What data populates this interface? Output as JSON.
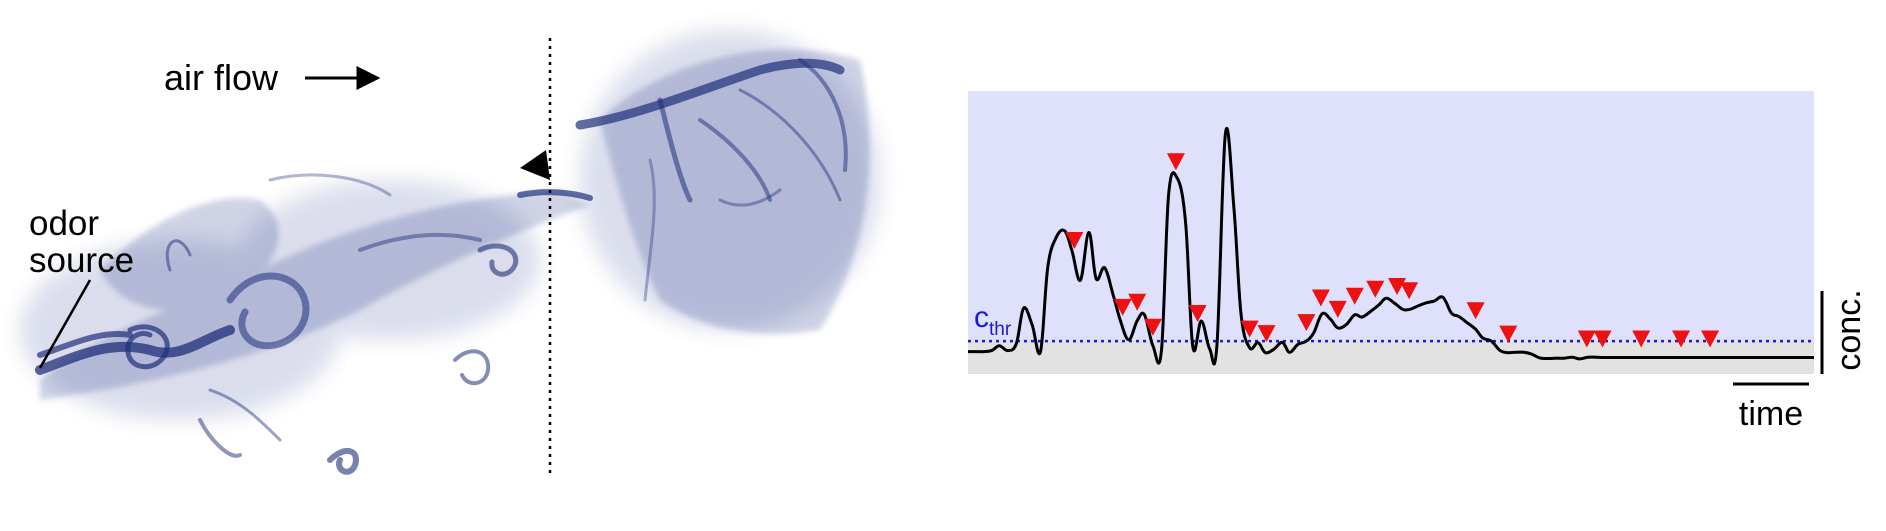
{
  "labels": {
    "air_flow": "air flow",
    "odor_source_line1": "odor",
    "odor_source_line2": "source",
    "threshold_main": "c",
    "threshold_sub": "thr",
    "y_scale": "conc.",
    "x_scale": "time"
  },
  "colors": {
    "plume": "#1f2f7a",
    "above_threshold": "#dfe0fb",
    "below_threshold": "#e2e2e2",
    "threshold_line": "#1a1ad6",
    "peak_marker": "#ee1111",
    "trace": "#000000"
  },
  "icons": {
    "air_flow_arrow": "right-arrow-icon",
    "detection_marker": "black-triangle-icon",
    "peak_marker": "red-down-triangle-icon"
  },
  "chart_data": {
    "type": "line",
    "x": [
      0,
      7,
      13,
      20,
      26,
      33,
      40,
      46,
      53,
      60,
      66,
      73,
      80,
      86,
      93,
      100,
      106,
      113,
      120,
      126,
      133,
      140,
      146,
      153,
      160,
      166,
      173,
      180,
      186,
      193,
      200,
      206,
      213,
      220,
      226,
      233,
      240,
      246,
      253,
      260,
      266,
      273,
      280,
      286,
      293,
      300,
      306,
      313,
      320,
      326,
      333,
      340,
      346,
      353,
      360,
      366,
      373,
      380,
      386,
      393,
      400,
      406,
      413,
      420,
      426,
      433,
      440,
      446,
      453,
      460,
      466,
      473,
      480,
      486,
      493,
      500,
      506,
      513,
      520,
      526,
      533,
      540,
      546,
      553,
      560,
      566,
      573,
      580,
      586,
      593,
      600,
      606,
      613,
      620,
      626,
      633,
      640,
      646,
      653,
      660,
      666,
      673,
      680,
      686,
      693,
      700
    ],
    "y": [
      0.8,
      0.8,
      0.8,
      1.2,
      2.6,
      1.1,
      3.2,
      14.0,
      9.0,
      0.8,
      26.5,
      35.5,
      37.5,
      31.5,
      22.5,
      37.0,
      23.0,
      26.3,
      18.2,
      10.3,
      4.4,
      10.2,
      12.0,
      2.6,
      1.0,
      48.5,
      53.6,
      40.3,
      2.3,
      10.1,
      1.6,
      3.0,
      67.0,
      44.5,
      12.0,
      2.0,
      3.5,
      0.5,
      1.5,
      3.6,
      0.6,
      3.0,
      4.0,
      6.5,
      12.3,
      10.6,
      8.0,
      9.0,
      12.0,
      11.3,
      13.0,
      15.0,
      17.0,
      15.5,
      13.6,
      13.7,
      14.8,
      15.7,
      16.2,
      17.3,
      12.5,
      11.5,
      9.6,
      7.6,
      4.9,
      4.0,
      1.2,
      0.5,
      0.6,
      0.6,
      0.1,
      -1.1,
      -1.3,
      -1.2,
      -1.2,
      -0.9,
      -1.4,
      -0.9,
      -0.9,
      -1.0,
      -1.0,
      -1.0,
      -1.0,
      -1.0,
      -1.0,
      -1.0,
      -1.0,
      -1.0,
      -1.0,
      -1.0,
      -1.0,
      -1.0,
      -1.0,
      -1.0,
      -1.0,
      -1.0,
      -1.0,
      -1.0,
      -1.0,
      -1.0,
      -1.0,
      -1.0,
      -1.0,
      -1.0,
      -1.0,
      -1.0
    ],
    "threshold": 4,
    "peaks_x": [
      88,
      128,
      140,
      153,
      172,
      190,
      233,
      247,
      280,
      292,
      306,
      320,
      337,
      355,
      365,
      420,
      447,
      512,
      525,
      557,
      590,
      614
    ],
    "xlim": [
      0,
      700
    ],
    "ylim": [
      -6,
      80
    ],
    "xlabel": "time",
    "ylabel": "conc.",
    "threshold_label": "c_thr",
    "grid": false
  }
}
